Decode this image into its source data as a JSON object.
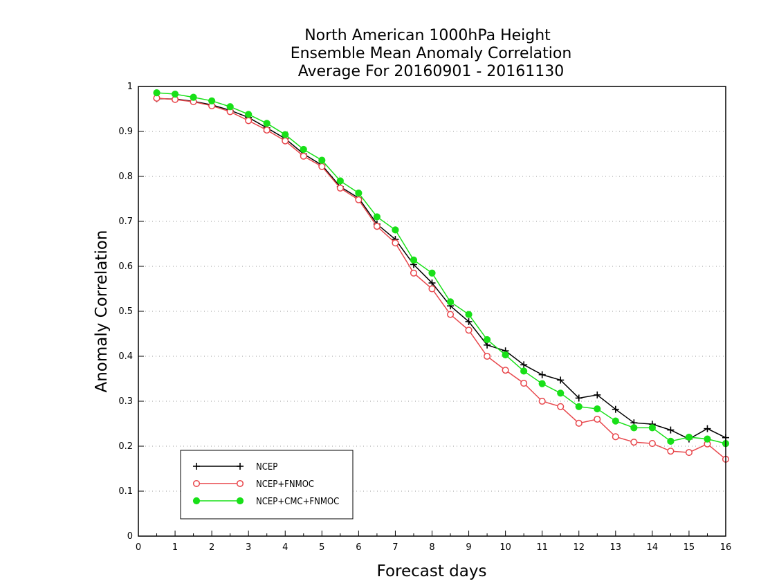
{
  "chart_data": {
    "type": "line",
    "title": [
      "North American 1000hPa Height",
      "Ensemble Mean Anomaly Correlation",
      "Average For 20160901 - 20161130"
    ],
    "xlabel": "Forecast days",
    "ylabel": "Anomaly Correlation",
    "xlim": [
      0,
      16
    ],
    "ylim": [
      0,
      1
    ],
    "xticks": [
      "0",
      "1",
      "2",
      "3",
      "4",
      "5",
      "6",
      "7",
      "8",
      "9",
      "10",
      "11",
      "12",
      "13",
      "14",
      "15",
      "16"
    ],
    "yticks": [
      "0",
      "0.1",
      "0.2",
      "0.3",
      "0.4",
      "0.5",
      "0.6",
      "0.7",
      "0.8",
      "0.9",
      "1"
    ],
    "grid": "horizontal-dotted",
    "legend_position": "bottom-left",
    "x": [
      0.5,
      1,
      1.5,
      2,
      2.5,
      3,
      3.5,
      4,
      4.5,
      5,
      5.5,
      6,
      6.5,
      7,
      7.5,
      8,
      8.5,
      9,
      9.5,
      10,
      10.5,
      11,
      11.5,
      12,
      12.5,
      13,
      13.5,
      14,
      14.5,
      15,
      15.5,
      16
    ],
    "series": [
      {
        "name": "NCEP",
        "color": "#000000",
        "marker": "plus",
        "values": [
          0.973,
          0.972,
          0.967,
          0.959,
          0.947,
          0.931,
          0.908,
          0.884,
          0.85,
          0.825,
          0.777,
          0.752,
          0.694,
          0.66,
          0.604,
          0.563,
          0.512,
          0.477,
          0.425,
          0.412,
          0.381,
          0.359,
          0.347,
          0.307,
          0.314,
          0.282,
          0.252,
          0.249,
          0.236,
          0.216,
          0.239,
          0.219
        ]
      },
      {
        "name": "NCEP+FNMOC",
        "color": "#e8474c",
        "marker": "open-circle",
        "values": [
          0.974,
          0.971,
          0.966,
          0.957,
          0.944,
          0.924,
          0.903,
          0.879,
          0.845,
          0.822,
          0.774,
          0.748,
          0.689,
          0.652,
          0.585,
          0.55,
          0.493,
          0.458,
          0.4,
          0.369,
          0.34,
          0.3,
          0.288,
          0.251,
          0.26,
          0.221,
          0.209,
          0.206,
          0.189,
          0.186,
          0.205,
          0.171
        ]
      },
      {
        "name": "NCEP+CMC+FNMOC",
        "color": "#18e018",
        "marker": "filled-circle",
        "values": [
          0.986,
          0.983,
          0.976,
          0.968,
          0.955,
          0.938,
          0.918,
          0.893,
          0.86,
          0.836,
          0.79,
          0.763,
          0.71,
          0.681,
          0.614,
          0.585,
          0.521,
          0.493,
          0.437,
          0.403,
          0.367,
          0.339,
          0.318,
          0.288,
          0.283,
          0.256,
          0.241,
          0.241,
          0.211,
          0.22,
          0.216,
          0.206
        ]
      }
    ]
  }
}
